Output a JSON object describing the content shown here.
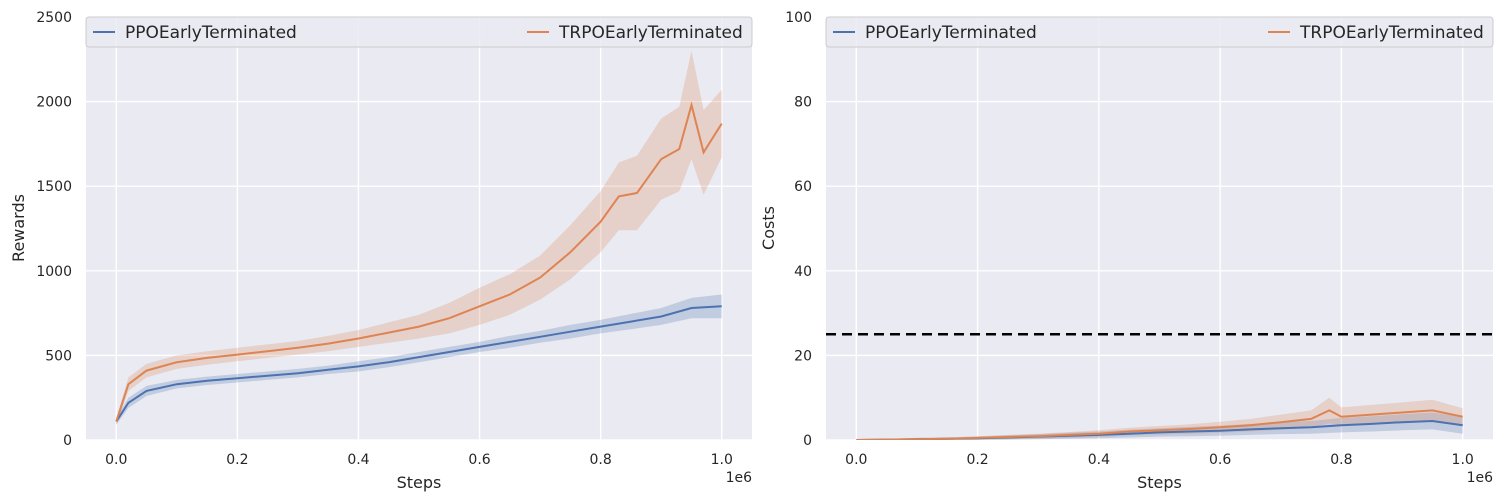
{
  "chart_data": [
    {
      "type": "line",
      "title": "",
      "xlabel": "Steps",
      "ylabel": "Rewards",
      "x_offset_label": "1e6",
      "xlim": [
        -0.05,
        1.05
      ],
      "ylim": [
        0,
        2500
      ],
      "xticks": [
        0.0,
        0.2,
        0.4,
        0.6,
        0.8,
        1.0
      ],
      "xtick_labels": [
        "0.0",
        "0.2",
        "0.4",
        "0.6",
        "0.8",
        "1.0"
      ],
      "yticks": [
        0,
        500,
        1000,
        1500,
        2000,
        2500
      ],
      "ytick_labels": [
        "0",
        "500",
        "1000",
        "1500",
        "2000",
        "2500"
      ],
      "grid": true,
      "legend_position": "top",
      "series": [
        {
          "name": "PPOEarlyTerminated",
          "color": "#4c72b0",
          "x": [
            0.0,
            0.02,
            0.05,
            0.1,
            0.15,
            0.2,
            0.25,
            0.3,
            0.35,
            0.4,
            0.45,
            0.5,
            0.55,
            0.6,
            0.65,
            0.7,
            0.75,
            0.8,
            0.85,
            0.9,
            0.95,
            1.0
          ],
          "y": [
            110,
            220,
            290,
            330,
            350,
            365,
            380,
            395,
            415,
            435,
            460,
            490,
            520,
            550,
            580,
            610,
            640,
            670,
            700,
            730,
            780,
            790
          ],
          "band": [
            20,
            30,
            30,
            25,
            25,
            25,
            25,
            25,
            25,
            30,
            30,
            30,
            30,
            30,
            35,
            35,
            40,
            40,
            45,
            50,
            60,
            70
          ]
        },
        {
          "name": "TRPOEarlyTerminated",
          "color": "#dd8452",
          "x": [
            0.0,
            0.02,
            0.05,
            0.1,
            0.15,
            0.2,
            0.25,
            0.3,
            0.35,
            0.4,
            0.45,
            0.5,
            0.55,
            0.6,
            0.65,
            0.7,
            0.75,
            0.8,
            0.83,
            0.86,
            0.9,
            0.93,
            0.95,
            0.97,
            1.0
          ],
          "y": [
            110,
            330,
            410,
            460,
            485,
            505,
            525,
            545,
            570,
            600,
            635,
            670,
            720,
            790,
            860,
            960,
            1110,
            1290,
            1440,
            1460,
            1660,
            1720,
            1980,
            1700,
            1870
          ],
          "band": [
            20,
            40,
            40,
            40,
            40,
            40,
            40,
            40,
            45,
            50,
            60,
            70,
            90,
            110,
            120,
            130,
            160,
            180,
            200,
            220,
            240,
            250,
            320,
            250,
            200
          ]
        }
      ]
    },
    {
      "type": "line",
      "title": "",
      "xlabel": "Steps",
      "ylabel": "Costs",
      "x_offset_label": "1e6",
      "xlim": [
        -0.05,
        1.05
      ],
      "ylim": [
        0,
        100
      ],
      "xticks": [
        0.0,
        0.2,
        0.4,
        0.6,
        0.8,
        1.0
      ],
      "xtick_labels": [
        "0.0",
        "0.2",
        "0.4",
        "0.6",
        "0.8",
        "1.0"
      ],
      "yticks": [
        0,
        20,
        40,
        60,
        80,
        100
      ],
      "ytick_labels": [
        "0",
        "20",
        "40",
        "60",
        "80",
        "100"
      ],
      "grid": true,
      "legend_position": "top",
      "reference_line": {
        "y": 25,
        "style": "dashed",
        "color": "#000000"
      },
      "series": [
        {
          "name": "PPOEarlyTerminated",
          "color": "#4c72b0",
          "x": [
            0.0,
            0.05,
            0.1,
            0.15,
            0.2,
            0.25,
            0.3,
            0.35,
            0.4,
            0.45,
            0.5,
            0.55,
            0.6,
            0.65,
            0.7,
            0.75,
            0.8,
            0.85,
            0.9,
            0.95,
            1.0
          ],
          "y": [
            0,
            0.1,
            0.2,
            0.3,
            0.4,
            0.6,
            0.8,
            1.0,
            1.2,
            1.5,
            1.8,
            2.0,
            2.2,
            2.5,
            2.8,
            3.0,
            3.5,
            3.8,
            4.2,
            4.5,
            3.5
          ],
          "band": [
            0.1,
            0.2,
            0.3,
            0.3,
            0.4,
            0.5,
            0.6,
            0.7,
            0.8,
            0.9,
            1.0,
            1.1,
            1.2,
            1.3,
            1.4,
            1.5,
            1.7,
            1.8,
            1.9,
            2.0,
            2.0
          ]
        },
        {
          "name": "TRPOEarlyTerminated",
          "color": "#dd8452",
          "x": [
            0.0,
            0.05,
            0.1,
            0.15,
            0.2,
            0.25,
            0.3,
            0.35,
            0.4,
            0.45,
            0.5,
            0.55,
            0.6,
            0.65,
            0.7,
            0.75,
            0.78,
            0.8,
            0.85,
            0.9,
            0.95,
            1.0
          ],
          "y": [
            0,
            0.1,
            0.2,
            0.3,
            0.5,
            0.7,
            0.9,
            1.2,
            1.5,
            2.0,
            2.3,
            2.6,
            3.0,
            3.5,
            4.2,
            5.0,
            7.0,
            5.5,
            6.0,
            6.5,
            7.0,
            5.5
          ],
          "band": [
            0.1,
            0.2,
            0.3,
            0.3,
            0.4,
            0.5,
            0.6,
            0.7,
            0.8,
            0.9,
            1.0,
            1.1,
            1.3,
            1.5,
            1.8,
            2.0,
            3.0,
            2.2,
            2.3,
            2.4,
            2.5,
            2.0
          ]
        }
      ]
    }
  ]
}
